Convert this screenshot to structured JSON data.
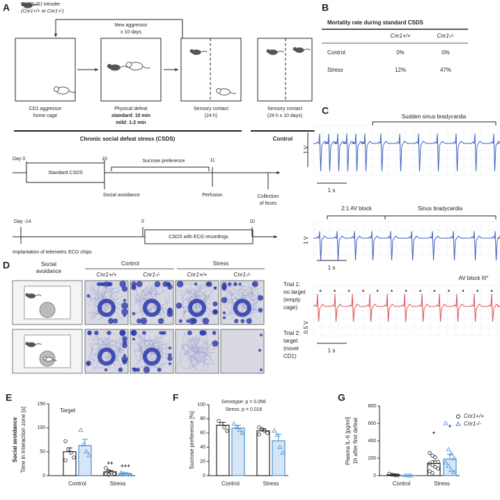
{
  "figure": {
    "panel_labels": {
      "a": "A",
      "b": "B",
      "c": "C",
      "d": "D"
    },
    "a": {
      "intruder": [
        "C57BL/6J intruder",
        "(Cnr1+/+ or Cnr1-/-)"
      ],
      "new_aggressor": [
        "New aggressor",
        "x 10 days"
      ],
      "captions": [
        [
          "CD1 aggressor",
          "home cage"
        ],
        [
          "Physical defeat",
          "standard: 10 min",
          "mild: 1-2 min"
        ],
        [
          "Sensory contact",
          "(24 h)"
        ],
        [
          "Sensory contact",
          "(24 h x 10 days)"
        ]
      ],
      "csds_label": "Chronic social defeat stress (CSDS)",
      "control_label": "Control"
    },
    "timeline1": {
      "day0": "Day 0",
      "d10": "10",
      "d11": "11",
      "box": "Standard CSDS",
      "sucrose": "Sucrose preference",
      "social": "Social avoidance",
      "perfusion": "Perfusion",
      "feces": [
        "Collection",
        "of feces"
      ]
    },
    "timeline2": {
      "day": "Day -14",
      "d0": "0",
      "d10": "10",
      "box": "CSDS with ECG recordings",
      "implant": "Implantation of telemetric ECG chips"
    },
    "b": {
      "title": "Mortality rate during standard CSDS",
      "headers": [
        "Cnr1+/+",
        "Cnr1-/-"
      ],
      "rows": [
        [
          "Control",
          "0%",
          "0%"
        ],
        [
          "Stress",
          "12%",
          "47%"
        ]
      ]
    },
    "c": {
      "trace1": {
        "label": "Sudden sinus bradycardia",
        "amp": "1 V",
        "time": "1 s"
      },
      "trace2": {
        "labels": [
          "2:1 AV block",
          "Sinus bradycardia"
        ],
        "amp": "1 V",
        "time": "1 s"
      },
      "trace3": {
        "label": "AV block III°",
        "marker": "*",
        "amp": "0.5 V",
        "time": "1 s"
      }
    },
    "d": {
      "header": [
        "Social",
        "avoidance"
      ],
      "groups": [
        "Control",
        "Stress"
      ],
      "genotypes": [
        "Cnr1+/+",
        "Cnr1-/-",
        "Cnr1+/+",
        "Cnr1-/-"
      ],
      "trials": [
        [
          "Trial 1:",
          "no target",
          "(empty",
          "cage)"
        ],
        [
          "Trial 2:",
          "target",
          "(novel",
          "CD1)"
        ]
      ]
    }
  },
  "chart_data": [
    {
      "type": "bar",
      "panel": "E",
      "y_title": "Social avoidance",
      "y_subtitle": "Time in interaction zone [s]",
      "annotations": [
        "Target"
      ],
      "categories": [
        "Control",
        "Stress"
      ],
      "ylim": [
        0,
        150
      ],
      "yticks": [
        0,
        50,
        100,
        150
      ],
      "series": [
        {
          "color": "#222222",
          "values": [
            50,
            8
          ],
          "errors": [
            8,
            3
          ],
          "points": [
            [
              72,
              55,
              48,
              38,
              32
            ],
            [
              16,
              10,
              7,
              4,
              3,
              2
            ]
          ],
          "significance": [
            null,
            "++"
          ]
        },
        {
          "color": "#4a8fd6",
          "values": [
            63,
            4
          ],
          "errors": [
            13,
            1.5
          ],
          "points": [
            [
              95,
              65,
              50,
              42
            ],
            [
              6,
              4,
              3,
              2,
              2
            ]
          ],
          "significance": [
            null,
            "+++"
          ]
        }
      ]
    },
    {
      "type": "bar",
      "panel": "F",
      "y_title": "Sucrose preference [%]",
      "annotations": [
        "Genotype: p = 0.056",
        "Stress: p = 0.016"
      ],
      "categories": [
        "Control",
        "Stress"
      ],
      "ylim": [
        0,
        100
      ],
      "yticks": [
        0,
        20,
        40,
        60,
        80,
        100
      ],
      "series": [
        {
          "color": "#222222",
          "values": [
            71,
            63
          ],
          "errors": [
            4,
            3
          ],
          "points": [
            [
              77,
              73,
              68,
              63
            ],
            [
              68,
              66,
              63,
              60,
              58
            ]
          ]
        },
        {
          "color": "#4a8fd6",
          "values": [
            67,
            49
          ],
          "errors": [
            4,
            9
          ],
          "points": [
            [
              73,
              68,
              64,
              60
            ],
            [
              63,
              57,
              40,
              32
            ]
          ]
        }
      ]
    },
    {
      "type": "bar",
      "panel": "G",
      "y_title": "Plasma IL-6 [pg/ml]",
      "y_subtitle": "1h after first defeat",
      "legend": "top-right",
      "categories": [
        "Control",
        "Stress"
      ],
      "ylim": [
        0,
        800
      ],
      "yticks": [
        0,
        200,
        400,
        600,
        800
      ],
      "series": [
        {
          "name": "Cnr1+/+",
          "color": "#222222",
          "values": [
            10,
            140
          ],
          "errors": [
            5,
            30
          ],
          "points": [
            [
              22,
              12,
              5,
              3
            ],
            [
              260,
              230,
              210,
              160,
              140,
              120,
              100,
              80,
              50,
              30
            ]
          ],
          "significance": [
            null,
            "+"
          ]
        },
        {
          "name": "Cnr1-/-",
          "color": "#4a8fd6",
          "values": [
            2,
            190
          ],
          "errors": [
            1,
            55
          ],
          "points": [
            [
              2,
              1,
              0
            ],
            [
              600,
              300,
              250,
              200,
              150,
              110,
              60,
              40
            ]
          ],
          "significance": [
            null,
            "+"
          ]
        }
      ]
    }
  ]
}
